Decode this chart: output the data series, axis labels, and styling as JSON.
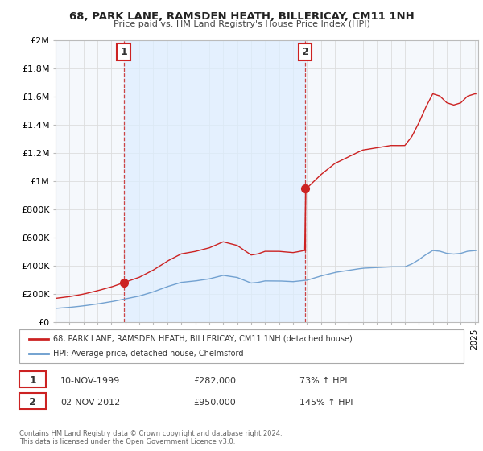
{
  "title": "68, PARK LANE, RAMSDEN HEATH, BILLERICAY, CM11 1NH",
  "subtitle": "Price paid vs. HM Land Registry's House Price Index (HPI)",
  "legend_line1": "68, PARK LANE, RAMSDEN HEATH, BILLERICAY, CM11 1NH (detached house)",
  "legend_line2": "HPI: Average price, detached house, Chelmsford",
  "annotation1_label": "1",
  "annotation1_date": "10-NOV-1999",
  "annotation1_price": "£282,000",
  "annotation1_pct": "73% ↑ HPI",
  "annotation2_label": "2",
  "annotation2_date": "02-NOV-2012",
  "annotation2_price": "£950,000",
  "annotation2_pct": "145% ↑ HPI",
  "footer": "Contains HM Land Registry data © Crown copyright and database right 2024.\nThis data is licensed under the Open Government Licence v3.0.",
  "red_line_color": "#cc2222",
  "blue_line_color": "#6699cc",
  "shade_color": "#ddeeff",
  "background_color": "#ffffff",
  "grid_color": "#dddddd",
  "ylim": [
    0,
    2000000
  ],
  "yticks": [
    0,
    200000,
    400000,
    600000,
    800000,
    1000000,
    1200000,
    1400000,
    1600000,
    1800000,
    2000000
  ],
  "ytick_labels": [
    "£0",
    "£200K",
    "£400K",
    "£600K",
    "£800K",
    "£1M",
    "£1.2M",
    "£1.4M",
    "£1.6M",
    "£1.8M",
    "£2M"
  ],
  "sale1_year": 1999.87,
  "sale1_price": 282000,
  "sale2_year": 2012.87,
  "sale2_price": 950000,
  "xlim_start": 1995.0,
  "xlim_end": 2025.25
}
